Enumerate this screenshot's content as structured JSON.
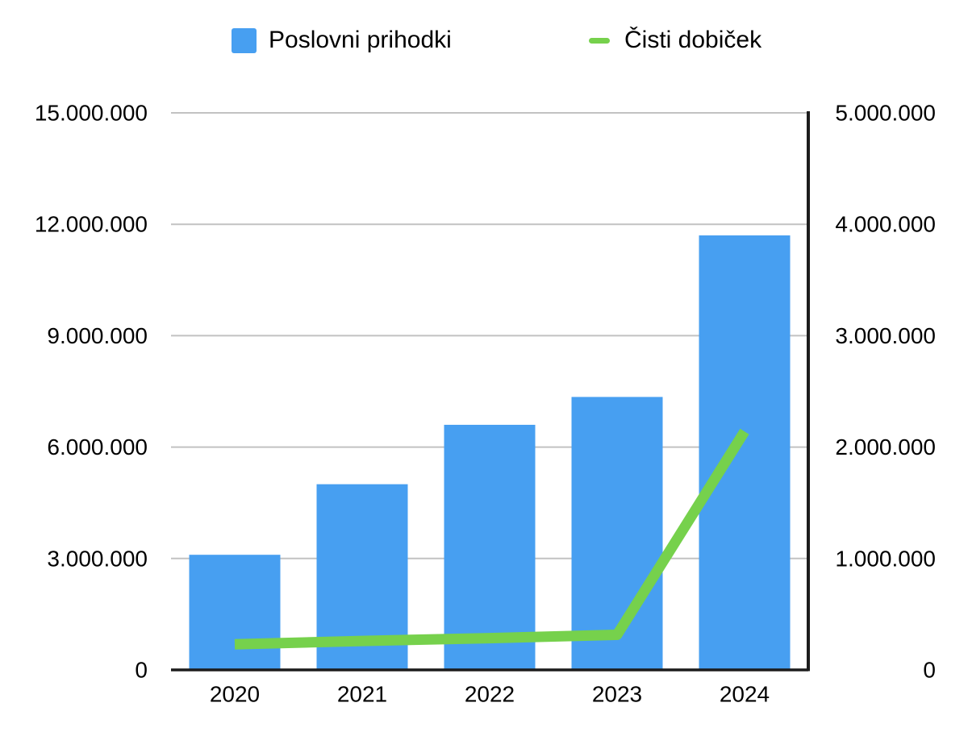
{
  "chart_data": {
    "type": "combo",
    "title": "",
    "categories": [
      "2020",
      "2021",
      "2022",
      "2023",
      "2024"
    ],
    "series": [
      {
        "name": "Poslovni prihodki",
        "type": "bar",
        "axis": "left",
        "color": "#479ff1",
        "values": [
          3100000,
          5000000,
          6600000,
          7350000,
          11700000
        ]
      },
      {
        "name": "Čisti dobiček",
        "type": "line",
        "axis": "right",
        "color": "#76d14c",
        "values": [
          230000,
          260000,
          285000,
          315000,
          2140000
        ]
      }
    ],
    "left_axis": {
      "min": 0,
      "max": 15000000,
      "tick_step": 3000000,
      "tick_labels": [
        "0",
        "3.000.000",
        "6.000.000",
        "9.000.000",
        "12.000.000",
        "15.000.000"
      ]
    },
    "right_axis": {
      "min": 0,
      "max": 5000000,
      "tick_step": 1000000,
      "tick_labels": [
        "0",
        "1.000.000",
        "2.000.000",
        "3.000.000",
        "4.000.000",
        "5.000.000"
      ]
    },
    "grid": true,
    "legend_position": "top"
  },
  "colors": {
    "bar": "#479ff1",
    "line": "#76d14c",
    "gridline": "#c2c2c2",
    "axis": "#1c1c1c",
    "text": "#000000",
    "background": "#ffffff"
  }
}
